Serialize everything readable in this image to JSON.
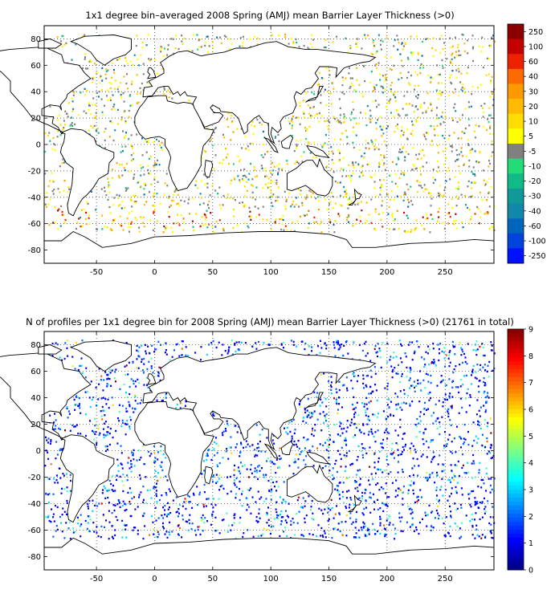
{
  "chart_data": [
    {
      "type": "heatmap",
      "title": "1x1 degree bin–averaged 2008 Spring (AMJ) mean Barrier Layer Thickness (>0)",
      "xlim": [
        -95,
        292
      ],
      "ylim": [
        -90,
        90
      ],
      "xticks": [
        "-50",
        "0",
        "50",
        "100",
        "150",
        "200",
        "250"
      ],
      "yticks": [
        "80",
        "60",
        "40",
        "20",
        "0",
        "-20",
        "-40",
        "-60",
        "-80"
      ],
      "grid": true,
      "colorbar": {
        "labels": [
          "250",
          "100",
          "60",
          "40",
          "30",
          "20",
          "10",
          "5",
          "-5",
          "-10",
          "-20",
          "-30",
          "-40",
          "-60",
          "-100",
          "-250"
        ],
        "colors": [
          "#8b0000",
          "#c40000",
          "#ee2200",
          "#ff6a00",
          "#ff9900",
          "#ffbb00",
          "#ffdd00",
          "#ffff00",
          "#808080",
          "#22dd77",
          "#11bb88",
          "#119999",
          "#1188aa",
          "#0066bb",
          "#0044dd",
          "#0011ff"
        ]
      }
    },
    {
      "type": "heatmap",
      "title": "N of profiles per 1x1 degree bin for 2008 Spring (AMJ) mean Barrier Layer Thickness (>0) (21761 in total)",
      "xlim": [
        -95,
        292
      ],
      "ylim": [
        -90,
        90
      ],
      "xticks": [
        "-50",
        "0",
        "50",
        "100",
        "150",
        "200",
        "250"
      ],
      "yticks": [
        "80",
        "60",
        "40",
        "20",
        "0",
        "-20",
        "-40",
        "-60",
        "-80"
      ],
      "grid": true,
      "colorbar": {
        "labels": [
          "9",
          "8",
          "7",
          "6",
          "5",
          "4",
          "3",
          "2",
          "1",
          "0"
        ],
        "vmin": 0,
        "vmax": 9
      }
    }
  ]
}
